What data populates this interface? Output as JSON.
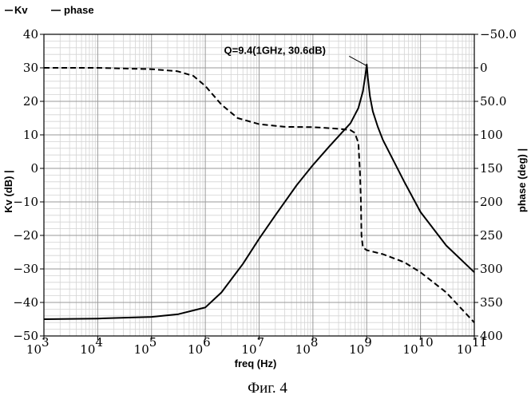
{
  "chart_data": {
    "type": "line",
    "title": "",
    "caption": "Фиг. 4",
    "legend": {
      "placement": "top-left",
      "entries": [
        "Kv",
        "phase"
      ]
    },
    "xlabel": "freq (Hz)",
    "ylabel_left": "Kv (dB) |",
    "ylabel_right": "phase (deg) |",
    "x_scale": "log",
    "xlim": [
      1000,
      100000000000
    ],
    "x_ticks": [
      {
        "base": "10",
        "exp": "3"
      },
      {
        "base": "10",
        "exp": "4"
      },
      {
        "base": "10",
        "exp": "5"
      },
      {
        "base": "10",
        "exp": "6"
      },
      {
        "base": "10",
        "exp": "7"
      },
      {
        "base": "10",
        "exp": "8"
      },
      {
        "base": "10",
        "exp": "9"
      },
      {
        "base": "10",
        "exp": "10"
      },
      {
        "base": "10",
        "exp": "11"
      }
    ],
    "ylim_left": [
      -50,
      40
    ],
    "y_ticks_left": [
      "40",
      "30",
      "20",
      "10",
      "0",
      "−10",
      "−20",
      "−30",
      "−40",
      "−50"
    ],
    "ylim_right": [
      -50,
      400
    ],
    "right_axis_inverted": true,
    "y_ticks_right": [
      "−50.0",
      "0",
      "50.0",
      "100",
      "150",
      "200",
      "250",
      "300",
      "350",
      "400"
    ],
    "grid": true,
    "annotation": {
      "text": "Q=9.4(1GHz, 30.6dB)",
      "x": 1000000000,
      "y": 30.6
    },
    "series": [
      {
        "name": "Kv",
        "axis": "left",
        "style": "solid",
        "x": [
          1000,
          10000,
          100000,
          316000,
          1000000,
          2000000,
          5000000,
          10000000,
          20000000,
          50000000,
          100000000,
          200000000,
          500000000,
          700000000,
          850000000,
          950000000,
          1000000000,
          1050000000,
          1150000000,
          1300000000,
          1600000000,
          2000000000,
          5000000000,
          10000000000,
          30000000000,
          100000000000
        ],
        "y": [
          -45,
          -44.8,
          -44.3,
          -43.5,
          -41.5,
          -37,
          -28.5,
          -21,
          -14,
          -5,
          1,
          6.5,
          13.5,
          18,
          23,
          28,
          31,
          27,
          21.5,
          17,
          12.5,
          8.5,
          -4,
          -13,
          -23,
          -31
        ]
      },
      {
        "name": "phase",
        "axis": "right",
        "style": "dashed",
        "x": [
          1000,
          10000,
          100000,
          300000,
          600000,
          1000000,
          2000000,
          4000000,
          10000000,
          30000000,
          100000000,
          300000000,
          500000000,
          600000000,
          700000000,
          750000000,
          780000000,
          800000000,
          850000000,
          1000000000,
          2000000000,
          5000000000,
          10000000000,
          30000000000,
          100000000000
        ],
        "y": [
          0,
          0,
          2,
          5,
          12,
          27,
          55,
          75,
          84,
          88,
          88.5,
          91,
          93,
          97,
          112,
          155,
          200,
          250,
          268,
          272,
          278,
          290,
          305,
          335,
          380
        ]
      }
    ]
  }
}
